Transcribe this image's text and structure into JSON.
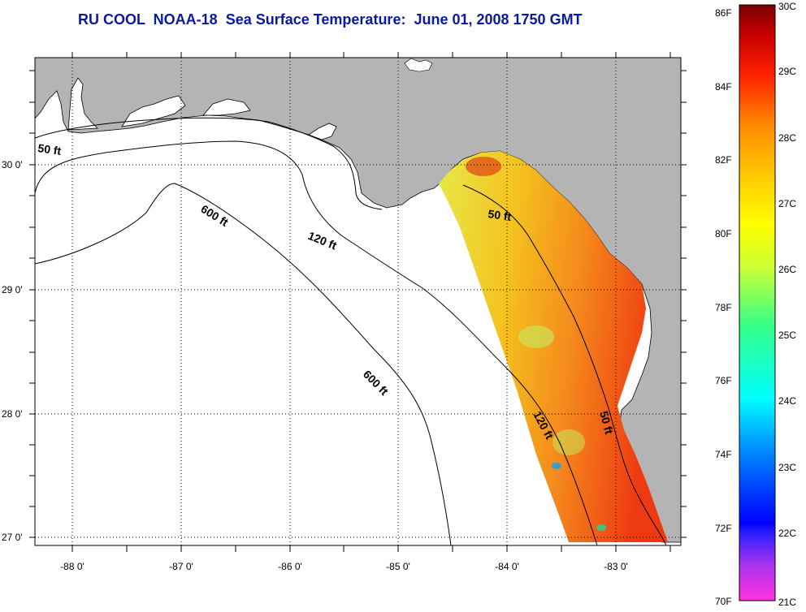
{
  "title": "RU COOL  NOAA-18  Sea Surface Temperature:  June 01, 2008 1750 GMT",
  "map": {
    "lon_ticks": [
      "-88 0'",
      "-87 0'",
      "-86 0'",
      "-85 0'",
      "-84 0'",
      "-83 0'"
    ],
    "lat_ticks": [
      "30 0'",
      "29 0'",
      "28 0'",
      "27 0'"
    ],
    "extent": {
      "lon": [
        -88.35,
        -82.35
      ],
      "lat": [
        26.95,
        30.95
      ]
    },
    "grid": "dotted",
    "contours": [
      {
        "label": "50 ft"
      },
      {
        "label": "120 ft"
      },
      {
        "label": "600 ft"
      },
      {
        "label": "50 ft"
      },
      {
        "label": "600 ft"
      },
      {
        "label": "120 ft"
      },
      {
        "label": "50 ft"
      }
    ],
    "land_color": "#b4b4b4",
    "water_color": "#ffffff"
  },
  "colorbar": {
    "fahrenheit": [
      "86F",
      "84F",
      "82F",
      "80F",
      "78F",
      "76F",
      "74F",
      "72F",
      "70F"
    ],
    "celsius": [
      "30C",
      "29C",
      "28C",
      "27C",
      "26C",
      "25C",
      "24C",
      "23C",
      "22C",
      "21C"
    ],
    "range_c": [
      21,
      30
    ],
    "colors": [
      "#ff33cc",
      "#6633ff",
      "#0000ff",
      "#0099ff",
      "#00ffff",
      "#33ff99",
      "#ccff33",
      "#ffff00",
      "#ffcc00",
      "#ff8800",
      "#ff2200",
      "#b00000",
      "#800000"
    ]
  }
}
